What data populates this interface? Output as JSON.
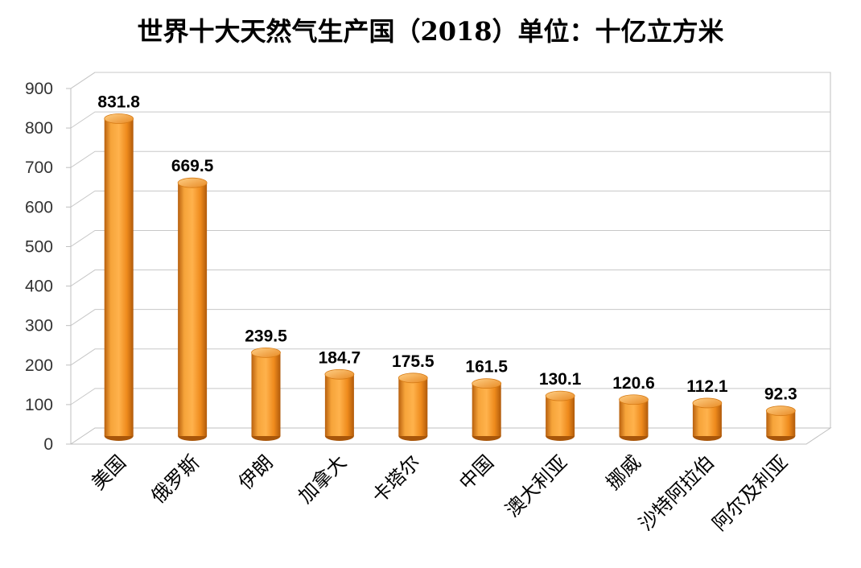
{
  "chart_data": {
    "type": "bar",
    "style": "3d-cylinder",
    "title": "世界十大天然气生产国（2018）单位：十亿立方米",
    "categories": [
      "美国",
      "俄罗斯",
      "伊朗",
      "加拿大",
      "卡塔尔",
      "中国",
      "澳大利亚",
      "挪威",
      "沙特阿拉伯",
      "阿尔及利亚"
    ],
    "values": [
      831.8,
      669.5,
      239.5,
      184.7,
      175.5,
      161.5,
      130.1,
      120.6,
      112.1,
      92.3
    ],
    "value_labels": [
      "831.8",
      "669.5",
      "239.5",
      "184.7",
      "175.5",
      "161.5",
      "130.1",
      "120.6",
      "112.1",
      "92.3"
    ],
    "yticks": [
      "0",
      "100",
      "200",
      "300",
      "400",
      "500",
      "600",
      "700",
      "800",
      "900"
    ],
    "ylim": [
      0,
      900
    ],
    "grid": true,
    "legend": "none",
    "bar_color": "#f0901e"
  }
}
